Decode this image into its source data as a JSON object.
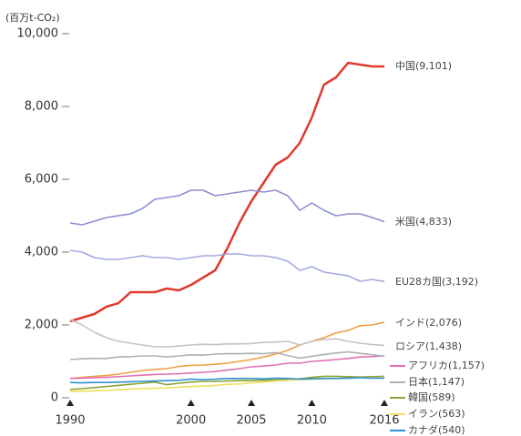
{
  "chart_data": {
    "type": "line",
    "ylabel": "(百万t-CO₂)",
    "x": [
      1990,
      1991,
      1992,
      1993,
      1994,
      1995,
      1996,
      1997,
      1998,
      1999,
      2000,
      2001,
      2002,
      2003,
      2004,
      2005,
      2006,
      2007,
      2008,
      2009,
      2010,
      2011,
      2012,
      2013,
      2014,
      2015,
      2016
    ],
    "xlim": [
      1990,
      2016
    ],
    "xticks": [
      1990,
      2000,
      2005,
      2010,
      2016
    ],
    "ylim": [
      0,
      10000
    ],
    "yticks": [
      0,
      {
        "value": 2000,
        "label": "2,000"
      },
      {
        "value": 4000,
        "label": "4,000"
      },
      {
        "value": 6000,
        "label": "6,000"
      },
      {
        "value": 8000,
        "label": "8,000"
      },
      {
        "value": 10000,
        "label": "10,000"
      }
    ],
    "series": [
      {
        "name": "中国(9,101)",
        "color": "#e0392e",
        "values": [
          2100,
          2200,
          2300,
          2500,
          2600,
          2900,
          2900,
          2900,
          3000,
          2950,
          3100,
          3300,
          3500,
          4100,
          4800,
          5400,
          5900,
          6400,
          6600,
          7000,
          7700,
          8600,
          8800,
          9200,
          9150,
          9100,
          9101
        ]
      },
      {
        "name": "米国(4,833)",
        "color": "#8c8fd2",
        "values": [
          4800,
          4750,
          4850,
          4950,
          5000,
          5050,
          5200,
          5450,
          5500,
          5550,
          5700,
          5700,
          5550,
          5600,
          5650,
          5700,
          5650,
          5700,
          5550,
          5150,
          5350,
          5150,
          5000,
          5050,
          5050,
          4950,
          4833
        ]
      },
      {
        "name": "EU28カ国(3,192)",
        "color": "#a3aade",
        "values": [
          4050,
          4000,
          3850,
          3800,
          3800,
          3850,
          3900,
          3850,
          3850,
          3800,
          3850,
          3900,
          3900,
          3950,
          3950,
          3900,
          3900,
          3850,
          3750,
          3500,
          3600,
          3450,
          3400,
          3350,
          3200,
          3250,
          3192
        ]
      },
      {
        "name": "インド(2,076)",
        "color": "#f0a040",
        "values": [
          530,
          560,
          590,
          610,
          650,
          700,
          750,
          780,
          800,
          860,
          890,
          900,
          920,
          950,
          1000,
          1050,
          1120,
          1200,
          1300,
          1450,
          1550,
          1650,
          1780,
          1850,
          1980,
          2000,
          2076
        ]
      },
      {
        "name": "ロシア(1,438)",
        "color": "#c4c4c4",
        "values": [
          2150,
          2000,
          1800,
          1650,
          1550,
          1500,
          1450,
          1400,
          1400,
          1420,
          1450,
          1470,
          1460,
          1480,
          1480,
          1490,
          1520,
          1530,
          1550,
          1450,
          1550,
          1600,
          1620,
          1550,
          1500,
          1460,
          1438
        ]
      },
      {
        "name": "アフリカ(1,157)",
        "color": "#e070b4",
        "values": [
          530,
          540,
          550,
          560,
          580,
          600,
          620,
          640,
          650,
          660,
          680,
          700,
          720,
          760,
          800,
          850,
          870,
          900,
          950,
          950,
          1000,
          1020,
          1050,
          1080,
          1120,
          1130,
          1157
        ]
      },
      {
        "name": "日本(1,147)",
        "color": "#b0b0b0",
        "values": [
          1050,
          1070,
          1080,
          1080,
          1120,
          1130,
          1150,
          1150,
          1120,
          1150,
          1180,
          1170,
          1200,
          1210,
          1210,
          1220,
          1210,
          1240,
          1160,
          1090,
          1140,
          1190,
          1230,
          1260,
          1220,
          1180,
          1147
        ]
      },
      {
        "name": "韓国(589)",
        "color": "#8ca232",
        "values": [
          230,
          250,
          280,
          310,
          340,
          370,
          400,
          430,
          360,
          400,
          430,
          450,
          450,
          460,
          470,
          470,
          480,
          490,
          500,
          520,
          560,
          590,
          590,
          580,
          570,
          580,
          589
        ]
      },
      {
        "name": "イラン(563)",
        "color": "#f0e060",
        "values": [
          170,
          180,
          190,
          200,
          220,
          240,
          250,
          260,
          270,
          290,
          310,
          320,
          340,
          370,
          380,
          410,
          430,
          460,
          480,
          500,
          510,
          520,
          530,
          540,
          550,
          550,
          563
        ]
      },
      {
        "name": "カナダ(540)",
        "color": "#3090d0",
        "values": [
          420,
          410,
          420,
          420,
          430,
          440,
          450,
          460,
          470,
          480,
          510,
          500,
          510,
          530,
          530,
          530,
          520,
          540,
          530,
          510,
          520,
          530,
          530,
          540,
          550,
          540,
          540
        ]
      }
    ]
  }
}
